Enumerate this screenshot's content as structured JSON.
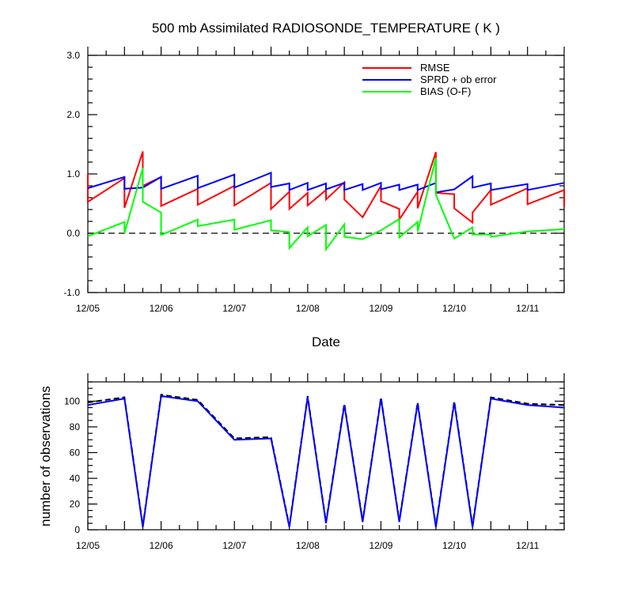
{
  "chart_data": [
    {
      "type": "line",
      "title": "500 mb Assimilated RADIOSONDE_TEMPERATURE ( K )",
      "xlabel": "Date",
      "ylabel": "",
      "ylim": [
        -1.0,
        3.0
      ],
      "yticks": [
        "-1.0",
        "0.0",
        "1.0",
        "2.0",
        "3.0"
      ],
      "xlim": [
        0,
        6.5
      ],
      "xticks": [
        {
          "x": 0,
          "label": "12/05"
        },
        {
          "x": 1,
          "label": "12/06"
        },
        {
          "x": 2,
          "label": "12/07"
        },
        {
          "x": 3,
          "label": "12/08"
        },
        {
          "x": 4,
          "label": "12/09"
        },
        {
          "x": 5,
          "label": "12/10"
        },
        {
          "x": 6,
          "label": "12/11"
        }
      ],
      "legend_position": "top-right",
      "reference_line": {
        "y": 0,
        "style": "dashed"
      },
      "series": [
        {
          "name": "RMSE",
          "color": "#ff0000",
          "points": [
            [
              0,
              1.0
            ],
            [
              0,
              0.53
            ],
            [
              0.5,
              0.93
            ],
            [
              0.5,
              0.43
            ],
            [
              0.75,
              1.38
            ],
            [
              0.75,
              0.8
            ],
            [
              1,
              0.95
            ],
            [
              1,
              0.46
            ],
            [
              1.5,
              0.75
            ],
            [
              1.5,
              0.48
            ],
            [
              2,
              0.8
            ],
            [
              2,
              0.47
            ],
            [
              2.5,
              0.85
            ],
            [
              2.5,
              0.41
            ],
            [
              2.75,
              0.7
            ],
            [
              2.75,
              0.41
            ],
            [
              3,
              0.68
            ],
            [
              3,
              0.47
            ],
            [
              3.25,
              0.73
            ],
            [
              3.25,
              0.57
            ],
            [
              3.5,
              0.86
            ],
            [
              3.5,
              0.57
            ],
            [
              3.75,
              0.27
            ],
            [
              4,
              0.8
            ],
            [
              4,
              0.54
            ],
            [
              4.25,
              0.41
            ],
            [
              4.25,
              0.23
            ],
            [
              4.5,
              0.7
            ],
            [
              4.5,
              0.42
            ],
            [
              4.75,
              1.37
            ],
            [
              4.75,
              0.68
            ],
            [
              5,
              0.66
            ],
            [
              5,
              0.42
            ],
            [
              5.25,
              0.18
            ],
            [
              5.25,
              0.35
            ],
            [
              5.5,
              0.73
            ],
            [
              5.5,
              0.48
            ],
            [
              6,
              0.76
            ],
            [
              6,
              0.49
            ],
            [
              6.5,
              0.73
            ],
            [
              6.5,
              0.45
            ]
          ]
        },
        {
          "name": "SPRD + ob error",
          "color": "#0000ff",
          "points": [
            [
              0,
              0.76
            ],
            [
              0.5,
              0.95
            ],
            [
              0.5,
              0.75
            ],
            [
              0.75,
              0.77
            ],
            [
              1,
              0.95
            ],
            [
              1,
              0.75
            ],
            [
              1.5,
              0.97
            ],
            [
              1.5,
              0.76
            ],
            [
              2,
              0.99
            ],
            [
              2,
              0.77
            ],
            [
              2.5,
              1.02
            ],
            [
              2.5,
              0.78
            ],
            [
              2.75,
              0.84
            ],
            [
              2.75,
              0.73
            ],
            [
              3,
              0.85
            ],
            [
              3,
              0.73
            ],
            [
              3.25,
              0.84
            ],
            [
              3.25,
              0.74
            ],
            [
              3.5,
              0.85
            ],
            [
              3.5,
              0.73
            ],
            [
              3.75,
              0.83
            ],
            [
              3.75,
              0.73
            ],
            [
              4,
              0.85
            ],
            [
              4,
              0.74
            ],
            [
              4.25,
              0.82
            ],
            [
              4.25,
              0.73
            ],
            [
              4.5,
              0.82
            ],
            [
              4.5,
              0.73
            ],
            [
              4.75,
              0.85
            ],
            [
              4.75,
              0.69
            ],
            [
              5,
              0.74
            ],
            [
              5.25,
              0.96
            ],
            [
              5.25,
              0.77
            ],
            [
              5.5,
              0.84
            ],
            [
              5.5,
              0.73
            ],
            [
              6,
              0.83
            ],
            [
              6,
              0.73
            ],
            [
              6.5,
              0.85
            ]
          ]
        },
        {
          "name": "BIAS (O-F)",
          "color": "#00ff00",
          "points": [
            [
              0,
              -0.05
            ],
            [
              0.5,
              0.19
            ],
            [
              0.5,
              0.0
            ],
            [
              0.75,
              1.1
            ],
            [
              0.75,
              0.53
            ],
            [
              1,
              0.35
            ],
            [
              1,
              -0.03
            ],
            [
              1.5,
              0.23
            ],
            [
              1.5,
              0.12
            ],
            [
              2,
              0.23
            ],
            [
              2,
              0.06
            ],
            [
              2.5,
              0.22
            ],
            [
              2.5,
              0.05
            ],
            [
              2.75,
              0.02
            ],
            [
              2.75,
              -0.25
            ],
            [
              3,
              0.1
            ],
            [
              3,
              -0.05
            ],
            [
              3.25,
              0.14
            ],
            [
              3.25,
              -0.27
            ],
            [
              3.5,
              0.15
            ],
            [
              3.5,
              -0.06
            ],
            [
              3.75,
              -0.1
            ],
            [
              4,
              0.05
            ],
            [
              4.25,
              0.24
            ],
            [
              4.25,
              -0.07
            ],
            [
              4.5,
              0.19
            ],
            [
              4.5,
              0.03
            ],
            [
              4.75,
              1.27
            ],
            [
              4.75,
              0.65
            ],
            [
              5,
              -0.09
            ],
            [
              5.25,
              0.1
            ],
            [
              5.25,
              -0.02
            ],
            [
              5.5,
              -0.02
            ],
            [
              5.5,
              -0.06
            ],
            [
              6,
              0.03
            ],
            [
              6.5,
              0.07
            ]
          ]
        }
      ]
    },
    {
      "type": "line",
      "title": "",
      "xlabel": "",
      "ylabel": "number of observations",
      "ylim": [
        0,
        115
      ],
      "yticks": [
        "0",
        "20",
        "40",
        "60",
        "80",
        "100"
      ],
      "xlim": [
        0,
        6.5
      ],
      "xticks": [
        {
          "x": 0,
          "label": "12/05"
        },
        {
          "x": 1,
          "label": "12/06"
        },
        {
          "x": 2,
          "label": "12/07"
        },
        {
          "x": 3,
          "label": "12/08"
        },
        {
          "x": 4,
          "label": "12/09"
        },
        {
          "x": 5,
          "label": "12/10"
        },
        {
          "x": 6,
          "label": "12/11"
        }
      ],
      "series": [
        {
          "color": "#000000",
          "style": "dashed",
          "x": [
            0,
            0.5,
            0.75,
            1,
            1.5,
            2,
            2.5,
            2.75,
            3,
            3.25,
            3.5,
            3.75,
            4,
            4.25,
            4.5,
            4.75,
            5,
            5.25,
            5.5,
            6,
            6.5
          ],
          "values": [
            99,
            103,
            3,
            105,
            101,
            71,
            72,
            3,
            104,
            6,
            98,
            7,
            103,
            7,
            99,
            3,
            100,
            3,
            103,
            98,
            97
          ]
        },
        {
          "color": "#0000ff",
          "style": "solid",
          "x": [
            0,
            0.5,
            0.75,
            1,
            1.5,
            2,
            2.5,
            2.75,
            3,
            3.25,
            3.5,
            3.75,
            4,
            4.25,
            4.5,
            4.75,
            5,
            5.25,
            5.5,
            6,
            6.5
          ],
          "values": [
            97,
            102,
            2,
            104,
            100,
            70,
            71,
            2,
            103,
            5,
            97,
            6,
            102,
            6,
            98,
            2,
            99,
            2,
            102,
            97,
            95
          ]
        }
      ]
    }
  ]
}
